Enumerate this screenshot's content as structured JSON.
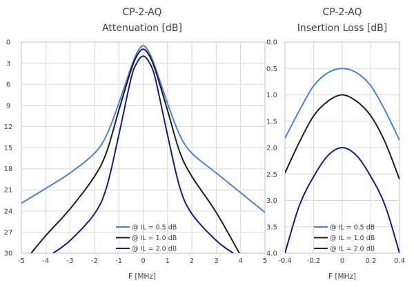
{
  "chart_data": [
    {
      "type": "line",
      "title_line1": "CP-2-AQ",
      "title_line2": "Attenuation [dB]",
      "xlabel": "F [MHz]",
      "ylabel": "",
      "xlim": [
        -5,
        5
      ],
      "ylim": [
        0,
        30
      ],
      "y_inverted": true,
      "xticks": [
        "-5",
        "-4",
        "-3",
        "-2",
        "-1",
        "0",
        "1",
        "2",
        "3",
        "4",
        "5"
      ],
      "yticks": [
        "0",
        "3",
        "6",
        "9",
        "12",
        "15",
        "18",
        "21",
        "24",
        "27",
        "30"
      ],
      "grid": true,
      "legend_position": "bottom-center",
      "series": [
        {
          "name": "@ IL  = 0.5 dB",
          "color": "#4a7fe0",
          "x": [
            -5,
            -4,
            -3,
            -2,
            -1.5,
            -1,
            -0.5,
            -0.25,
            0,
            0.25,
            0.5,
            1,
            1.5,
            2,
            3,
            4,
            5
          ],
          "y": [
            22.9,
            20.8,
            18.6,
            15.8,
            13.2,
            8.7,
            3.6,
            1.5,
            0.5,
            1.5,
            3.6,
            8.7,
            13.2,
            15.8,
            18.6,
            21.4,
            24.2
          ]
        },
        {
          "name": "@ IL  = 1.0 dB",
          "color": "#1c1c1c",
          "x": [
            -4.6,
            -4,
            -3,
            -2,
            -1.5,
            -1,
            -0.5,
            -0.25,
            0,
            0.25,
            0.5,
            1,
            1.5,
            2,
            3,
            3.95
          ],
          "y": [
            30,
            27.5,
            23.7,
            19.1,
            15.6,
            9.7,
            4.0,
            1.9,
            1.0,
            1.9,
            4.0,
            9.7,
            15.6,
            19.1,
            24.2,
            30
          ]
        },
        {
          "name": "@ IL  = 2.0 dB",
          "color": "#0f1f7a",
          "x": [
            -3.7,
            -3,
            -2,
            -1.5,
            -1,
            -0.5,
            -0.25,
            0,
            0.25,
            0.5,
            1,
            1.5,
            2,
            3,
            3.7
          ],
          "y": [
            30,
            28.2,
            24.4,
            20.6,
            13.2,
            5.2,
            2.9,
            2.0,
            2.9,
            5.2,
            13.2,
            20.6,
            24.4,
            28.2,
            30
          ]
        }
      ]
    },
    {
      "type": "line",
      "title_line1": "CP-2-AQ",
      "title_line2": "Insertion Loss [dB]",
      "xlabel": "F [MHz]",
      "ylabel": "",
      "xlim": [
        -0.4,
        0.4
      ],
      "ylim": [
        0,
        4
      ],
      "y_inverted": true,
      "xticks": [
        "-0.4",
        "-0.2",
        "0",
        "0.2",
        "0.4"
      ],
      "yticks": [
        "0.0",
        "0.5",
        "1.0",
        "1.5",
        "2.0",
        "2.5",
        "3.0",
        "3.5",
        "4.0"
      ],
      "grid": true,
      "legend_position": "bottom-center",
      "series": [
        {
          "name": "@ IL  = 0.5 dB",
          "color": "#4a7fe0",
          "x": [
            -0.4,
            -0.3,
            -0.2,
            -0.1,
            0,
            0.1,
            0.2,
            0.3,
            0.4
          ],
          "y": [
            1.82,
            1.3,
            0.83,
            0.58,
            0.5,
            0.58,
            0.83,
            1.3,
            1.86
          ]
        },
        {
          "name": "@ IL  = 1.0 dB",
          "color": "#1c1c1c",
          "x": [
            -0.4,
            -0.3,
            -0.2,
            -0.1,
            0,
            0.1,
            0.2,
            0.3,
            0.4
          ],
          "y": [
            2.48,
            1.9,
            1.4,
            1.12,
            1.0,
            1.12,
            1.4,
            1.9,
            2.6
          ]
        },
        {
          "name": "@ IL  = 2.0 dB",
          "color": "#0f1f7a",
          "x": [
            -0.4,
            -0.3,
            -0.2,
            -0.1,
            0,
            0.1,
            0.2,
            0.3,
            0.4
          ],
          "y": [
            4.0,
            3.1,
            2.55,
            2.15,
            2.0,
            2.15,
            2.55,
            3.1,
            4.0
          ]
        }
      ]
    }
  ]
}
